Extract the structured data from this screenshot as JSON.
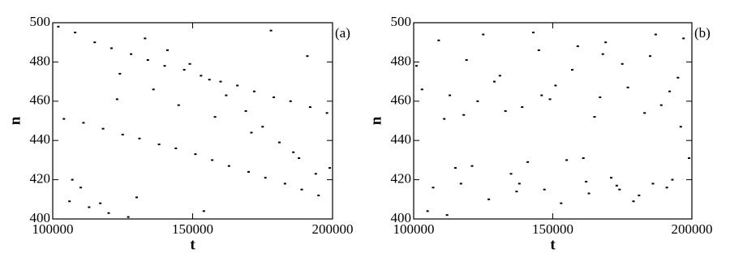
{
  "chart_data": [
    {
      "type": "scatter",
      "label": "(a)",
      "xlabel": "t",
      "ylabel": "n",
      "xlim": [
        100000,
        200000
      ],
      "ylim": [
        400,
        500
      ],
      "xticks": [
        100000,
        150000,
        200000
      ],
      "yticks": [
        400,
        420,
        440,
        460,
        480,
        500
      ],
      "color": "#000000",
      "x": [
        102000,
        108000,
        115000,
        121000,
        128000,
        134000,
        140000,
        147000,
        153000,
        160000,
        166000,
        172000,
        179000,
        185000,
        192000,
        198000,
        104000,
        111000,
        118000,
        125000,
        131000,
        138000,
        144000,
        151000,
        157000,
        163000,
        170000,
        176000,
        183000,
        189000,
        195000,
        106000,
        113000,
        120000,
        127000,
        133000,
        141000,
        149000,
        156000,
        162000,
        169000,
        175000,
        181000,
        188000,
        194000,
        110000,
        117000,
        124000,
        136000,
        145000,
        158000,
        171000,
        186000,
        199000,
        107000,
        130000,
        154000,
        178000,
        191000,
        123000
      ],
      "y": [
        498,
        495,
        490,
        487,
        484,
        481,
        478,
        476,
        473,
        470,
        468,
        465,
        462,
        460,
        457,
        454,
        451,
        449,
        446,
        443,
        441,
        438,
        436,
        433,
        430,
        427,
        424,
        421,
        418,
        415,
        412,
        409,
        406,
        403,
        401,
        492,
        486,
        479,
        471,
        463,
        455,
        447,
        439,
        431,
        423,
        416,
        408,
        474,
        466,
        458,
        452,
        444,
        434,
        426,
        420,
        411,
        404,
        496,
        483,
        461
      ]
    },
    {
      "type": "scatter",
      "label": "(b)",
      "xlabel": "t",
      "ylabel": "n",
      "xlim": [
        100000,
        200000
      ],
      "ylim": [
        400,
        500
      ],
      "xticks": [
        100000,
        150000,
        200000
      ],
      "yticks": [
        400,
        420,
        440,
        460,
        480,
        500
      ],
      "color": "#000000",
      "x": [
        101000,
        105000,
        109000,
        113000,
        117000,
        121000,
        125000,
        129000,
        133000,
        137000,
        141000,
        145000,
        149000,
        153000,
        157000,
        161000,
        165000,
        169000,
        173000,
        177000,
        181000,
        185000,
        189000,
        193000,
        197000,
        103000,
        107000,
        111000,
        115000,
        119000,
        123000,
        127000,
        131000,
        135000,
        139000,
        143000,
        147000,
        151000,
        155000,
        159000,
        163000,
        167000,
        171000,
        175000,
        179000,
        183000,
        187000,
        191000,
        195000,
        199000,
        112000,
        138000,
        162000,
        174000,
        186000,
        196000,
        118000,
        146000,
        168000,
        192000
      ],
      "y": [
        478,
        404,
        491,
        463,
        418,
        427,
        494,
        470,
        455,
        414,
        429,
        486,
        461,
        408,
        476,
        431,
        452,
        490,
        417,
        467,
        412,
        483,
        458,
        420,
        492,
        466,
        416,
        451,
        426,
        481,
        460,
        410,
        473,
        423,
        457,
        495,
        415,
        468,
        430,
        488,
        413,
        462,
        421,
        479,
        409,
        454,
        494,
        416,
        472,
        431,
        402,
        418,
        419,
        415,
        418,
        447,
        453,
        463,
        484,
        465
      ]
    }
  ]
}
